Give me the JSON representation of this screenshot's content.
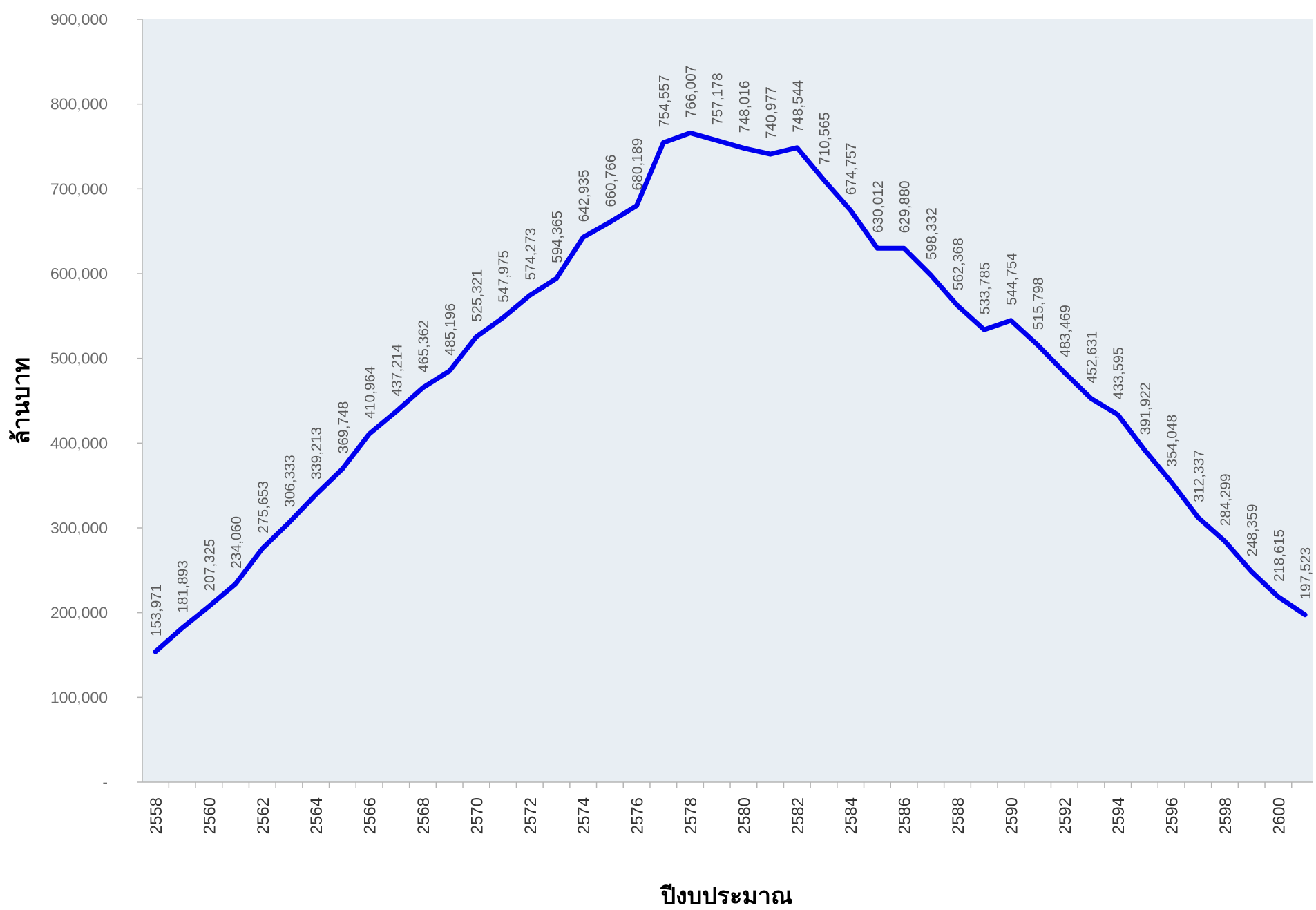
{
  "chart_data": {
    "type": "line",
    "xlabel": "ปีงบประมาณ",
    "ylabel": "ล้านบาท",
    "ylim": [
      0,
      900000
    ],
    "yticks": [
      0,
      100000,
      200000,
      300000,
      400000,
      500000,
      600000,
      700000,
      800000,
      900000
    ],
    "ytick_labels": [
      "-",
      "100,000",
      "200,000",
      "300,000",
      "400,000",
      "500,000",
      "600,000",
      "700,000",
      "800,000",
      "900,000"
    ],
    "x": [
      2558,
      2559,
      2560,
      2561,
      2562,
      2563,
      2564,
      2565,
      2566,
      2567,
      2568,
      2569,
      2570,
      2571,
      2572,
      2573,
      2574,
      2575,
      2576,
      2577,
      2578,
      2579,
      2580,
      2581,
      2582,
      2583,
      2584,
      2585,
      2586,
      2587,
      2588,
      2589,
      2590,
      2591,
      2592,
      2593,
      2594,
      2595,
      2596,
      2597,
      2598,
      2599,
      2600,
      2601
    ],
    "xtick_labels": [
      "2558",
      "2560",
      "2562",
      "2564",
      "2566",
      "2568",
      "2570",
      "2572",
      "2574",
      "2576",
      "2578",
      "2580",
      "2582",
      "2584",
      "2586",
      "2588",
      "2590",
      "2592",
      "2594",
      "2596",
      "2598",
      "2600"
    ],
    "series": [
      {
        "color": "#0000ee",
        "values": [
          153971,
          181893,
          207325,
          234060,
          275653,
          306333,
          339213,
          369748,
          410964,
          437214,
          465362,
          485196,
          525321,
          547975,
          574273,
          594365,
          642935,
          660766,
          680189,
          754557,
          766007,
          757178,
          748016,
          740977,
          748544,
          710565,
          674757,
          630012,
          629880,
          598332,
          562368,
          533785,
          544754,
          515798,
          483469,
          452631,
          433595,
          391922,
          354048,
          312337,
          284299,
          248359,
          218615,
          197523
        ],
        "labels": [
          "153,971",
          "181,893",
          "207,325",
          "234,060",
          "275,653",
          "306,333",
          "339,213",
          "369,748",
          "410,964",
          "437,214",
          "465,362",
          "485,196",
          "525,321",
          "547,975",
          "574,273",
          "594,365",
          "642,935",
          "660,766",
          "680,189",
          "754,557",
          "766,007",
          "757,178",
          "748,016",
          "740,977",
          "748,544",
          "710,565",
          "674,757",
          "630,012",
          "629,880",
          "598,332",
          "562,368",
          "533,785",
          "544,754",
          "515,798",
          "483,469",
          "452,631",
          "433,595",
          "391,922",
          "354,048",
          "312,337",
          "284,299",
          "248,359",
          "218,615",
          "197,523"
        ]
      }
    ],
    "plot_background": "#e8eef3",
    "grid": false,
    "legend": "none"
  }
}
